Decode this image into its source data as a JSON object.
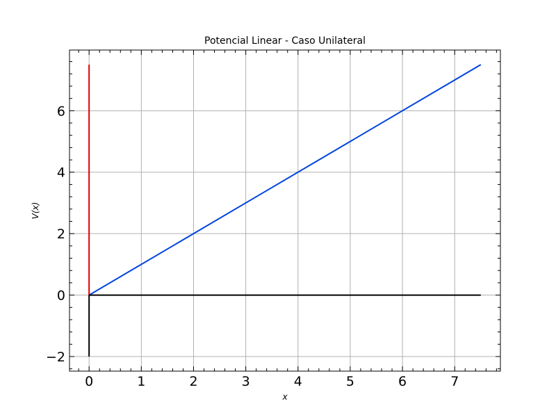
{
  "chart_data": {
    "type": "line",
    "title": "Potencial Linear - Caso Unilateral",
    "xlabel": "x",
    "ylabel": "V(x)",
    "xlim": [
      -0.375,
      7.875
    ],
    "ylim": [
      -2.475,
      7.975
    ],
    "xticks": [
      0,
      1,
      2,
      3,
      4,
      5,
      6,
      7
    ],
    "yticks": [
      -2,
      0,
      2,
      4,
      6
    ],
    "xtick_labels": [
      "0",
      "1",
      "2",
      "3",
      "4",
      "5",
      "6",
      "7"
    ],
    "ytick_labels": [
      "−2",
      "0",
      "2",
      "4",
      "6"
    ],
    "x_minor_step": 0.2,
    "y_minor_step": 0.4,
    "grid": true,
    "ticks_inside": true,
    "ticks_on_all_sides": true,
    "series": [
      {
        "color": "#0044dd",
        "x": [
          0,
          7.5
        ],
        "y": [
          0,
          7.5
        ]
      },
      {
        "color": "#dd0000",
        "x": [
          0,
          0
        ],
        "y": [
          0,
          7.5
        ]
      },
      {
        "color": "#000000",
        "x": [
          0,
          7.5
        ],
        "y": [
          0,
          0
        ]
      },
      {
        "color": "#000000",
        "x": [
          0,
          0
        ],
        "y": [
          -2,
          0
        ]
      }
    ]
  }
}
